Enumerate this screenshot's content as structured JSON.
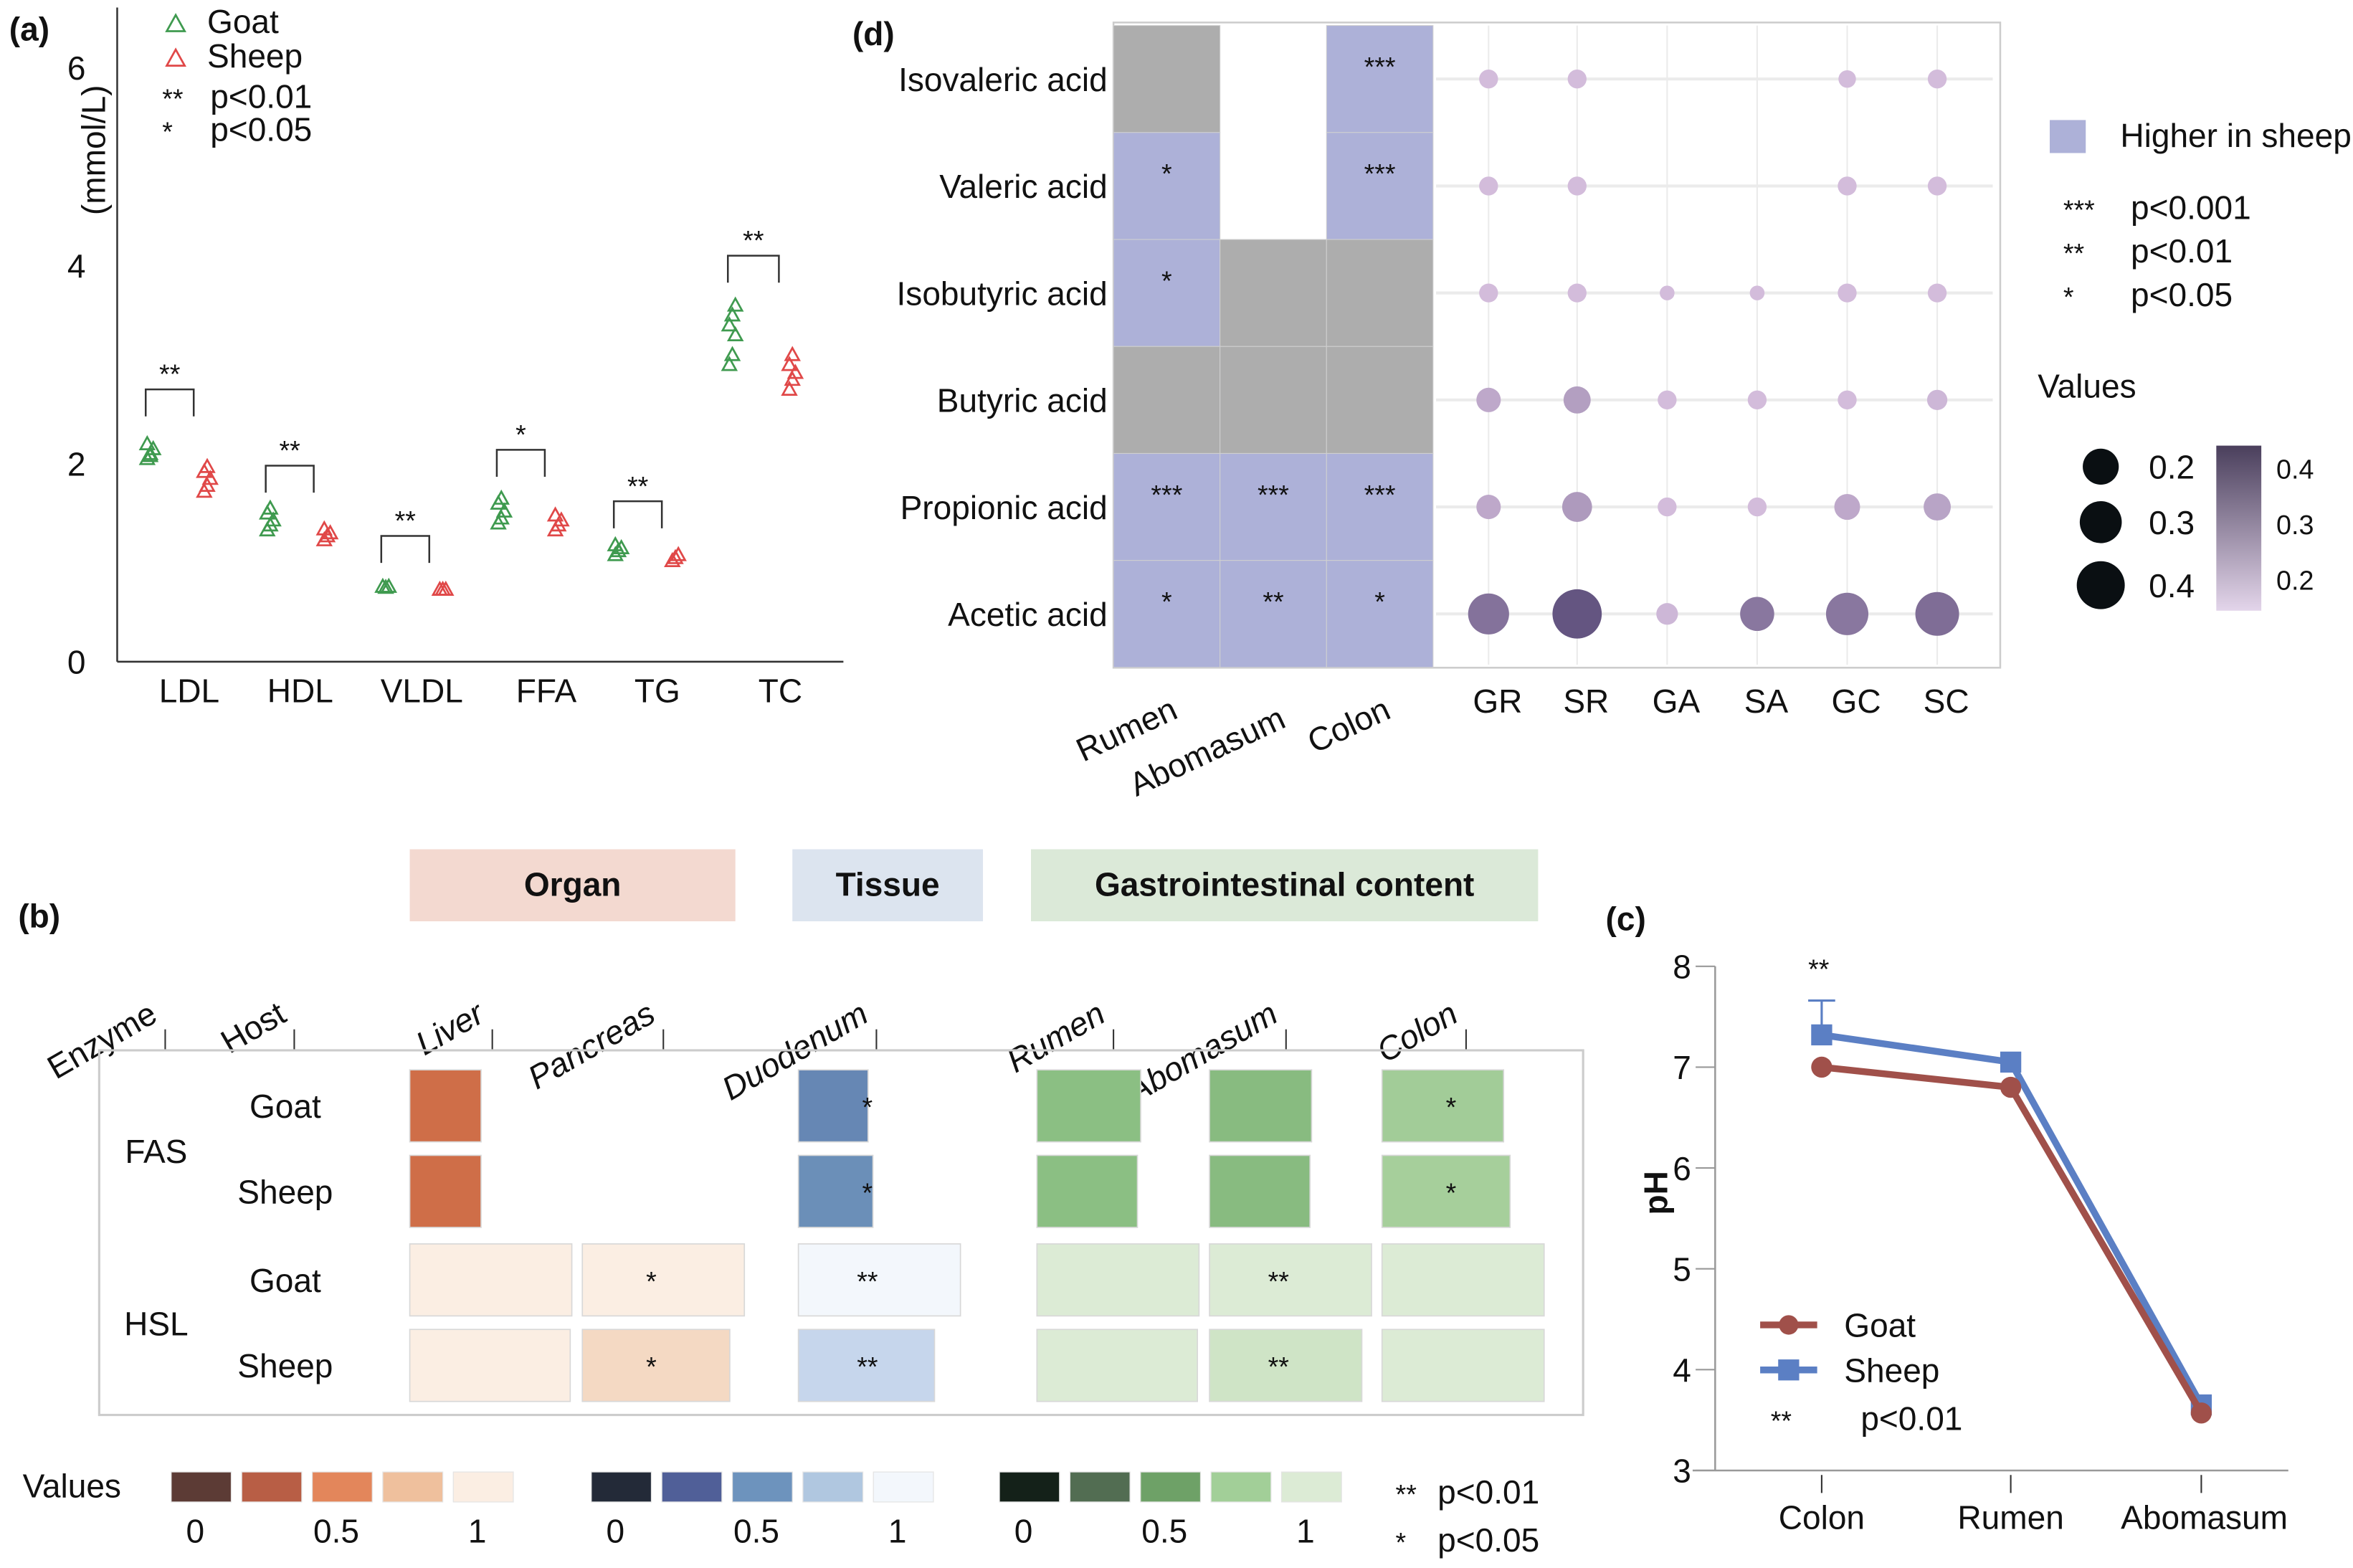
{
  "chart_data": [
    {
      "panel": "(a)",
      "type": "scatter",
      "ylabel": "(mmol/L)",
      "ylim": [
        0,
        6.6
      ],
      "yticks": [
        "0",
        "2",
        "4",
        "6"
      ],
      "categories": [
        "LDL",
        "HDL",
        "VLDL",
        "FFA",
        "TG",
        "TC"
      ],
      "legend": {
        "placement": "top-left",
        "series": [
          "Goat",
          "Sheep"
        ],
        "sig": [
          {
            "mark": "**",
            "text": "p<0.01"
          },
          {
            "mark": "*",
            "text": "p<0.05"
          }
        ]
      },
      "colors": {
        "Goat": "#3f9a4f",
        "Sheep": "#e04848"
      },
      "series": [
        {
          "name": "Goat",
          "values": [
            [
              2.05,
              2.1,
              2.15,
              2.2,
              2.08
            ],
            [
              1.33,
              1.38,
              1.43,
              1.5,
              1.55
            ],
            [
              0.76,
              0.75,
              0.76
            ],
            [
              1.4,
              1.45,
              1.52,
              1.6,
              1.65
            ],
            [
              1.08,
              1.12,
              1.15,
              1.18
            ],
            [
              3.0,
              3.1,
              3.3,
              3.4,
              3.5,
              3.6
            ]
          ]
        },
        {
          "name": "Sheep",
          "values": [
            [
              1.72,
              1.78,
              1.85,
              1.92,
              1.97
            ],
            [
              1.23,
              1.27,
              1.3,
              1.34
            ],
            [
              0.73,
              0.73,
              0.73
            ],
            [
              1.33,
              1.38,
              1.43,
              1.48
            ],
            [
              1.02,
              1.05,
              1.08
            ],
            [
              2.75,
              2.85,
              2.92,
              3.0,
              3.1
            ]
          ]
        }
      ],
      "significance": [
        {
          "category": "LDL",
          "mark": "**",
          "bracket_y": 2.75
        },
        {
          "category": "HDL",
          "mark": "**",
          "bracket_y": 1.98
        },
        {
          "category": "VLDL",
          "mark": "**",
          "bracket_y": 1.27
        },
        {
          "category": "FFA",
          "mark": "*",
          "bracket_y": 2.14
        },
        {
          "category": "TG",
          "mark": "**",
          "bracket_y": 1.62
        },
        {
          "category": "TC",
          "mark": "**",
          "bracket_y": 4.1
        }
      ]
    },
    {
      "panel": "(b)",
      "type": "heatmap",
      "groups": [
        {
          "label": "Organ",
          "color": "#f3d9d0",
          "text_color": "#d4704a"
        },
        {
          "label": "Tissue",
          "color": "#dce4ef",
          "text_color": "#6b8fc4"
        },
        {
          "label": "Gastrointestinal content",
          "color": "#dbe9d8",
          "text_color": "#6a9860"
        }
      ],
      "header_labels": [
        "Enzyme",
        "Host"
      ],
      "columns": [
        {
          "label": "Liver",
          "color": "#d4704a"
        },
        {
          "label": "Pancreas",
          "color": "#d4704a"
        },
        {
          "label": "Duodenum",
          "color": "#6b8fc4"
        },
        {
          "label": "Rumen",
          "color": "#6a9860"
        },
        {
          "label": "Abomasum",
          "color": "#6a9860"
        },
        {
          "label": "Colon",
          "color": "#6a9860"
        }
      ],
      "enzymes": [
        "FAS",
        "HSL"
      ],
      "rows": [
        {
          "enzyme": "FAS",
          "host": "Goat",
          "cells": [
            {
              "color": "#cf6e48",
              "size": 0.44,
              "sig": ""
            },
            null,
            {
              "color": "#6687b4",
              "size": 0.43,
              "sig": "*"
            },
            {
              "color": "#8bbf83",
              "size": 0.64,
              "sig": ""
            },
            {
              "color": "#88bb80",
              "size": 0.63,
              "sig": ""
            },
            {
              "color": "#a2cc98",
              "size": 0.75,
              "sig": "*"
            }
          ]
        },
        {
          "enzyme": "FAS",
          "host": "Sheep",
          "cells": [
            {
              "color": "#cf6e48",
              "size": 0.44,
              "sig": ""
            },
            null,
            {
              "color": "#6b8fb8",
              "size": 0.46,
              "sig": "*"
            },
            {
              "color": "#8bbf83",
              "size": 0.62,
              "sig": ""
            },
            {
              "color": "#88bb80",
              "size": 0.62,
              "sig": ""
            },
            {
              "color": "#a6cf9b",
              "size": 0.79,
              "sig": "*"
            }
          ]
        },
        {
          "enzyme": "HSL",
          "host": "Goat",
          "cells": [
            {
              "color": "#fbeee3",
              "size": 1.0,
              "sig": ""
            },
            {
              "color": "#fbeee3",
              "size": 1.0,
              "sig": "*"
            },
            {
              "color": "#f3f7fc",
              "size": 1.0,
              "sig": "**"
            },
            {
              "color": "#dcebd5",
              "size": 1.0,
              "sig": ""
            },
            {
              "color": "#dcebd5",
              "size": 1.0,
              "sig": "**"
            },
            {
              "color": "#dcebd5",
              "size": 1.0,
              "sig": ""
            }
          ]
        },
        {
          "enzyme": "HSL",
          "host": "Sheep",
          "cells": [
            {
              "color": "#fbeee3",
              "size": 0.99,
              "sig": ""
            },
            {
              "color": "#f4d9c3",
              "size": 0.91,
              "sig": "*"
            },
            {
              "color": "#c6d6ec",
              "size": 0.84,
              "sig": "**"
            },
            {
              "color": "#dcebd5",
              "size": 0.99,
              "sig": ""
            },
            {
              "color": "#cfe4c6",
              "size": 0.94,
              "sig": "**"
            },
            {
              "color": "#dcebd5",
              "size": 1.0,
              "sig": ""
            }
          ]
        }
      ],
      "legend": {
        "title": "Values",
        "scales": [
          {
            "colors": [
              "#5c3b35",
              "#b85e45",
              "#e3865b",
              "#efc09d",
              "#fbeee3"
            ],
            "ticks": [
              "0",
              "0.5",
              "1"
            ]
          },
          {
            "colors": [
              "#232a38",
              "#505f98",
              "#6d93bd",
              "#b0c7e0",
              "#f3f7fc"
            ],
            "ticks": [
              "0",
              "0.5",
              "1"
            ]
          },
          {
            "colors": [
              "#142119",
              "#526d52",
              "#6ea167",
              "#a2cf98",
              "#dcebd5"
            ],
            "ticks": [
              "0",
              "0.5",
              "1"
            ]
          }
        ],
        "sig": [
          {
            "mark": "**",
            "text": "p<0.01"
          },
          {
            "mark": "*",
            "text": "p<0.05"
          }
        ]
      }
    },
    {
      "panel": "(c)",
      "type": "line",
      "ylabel": "pH",
      "ylim": [
        3,
        8
      ],
      "yticks": [
        "3",
        "4",
        "5",
        "6",
        "7",
        "8"
      ],
      "categories": [
        "Colon",
        "Rumen",
        "Abomasum"
      ],
      "series": [
        {
          "name": "Goat",
          "values": [
            7.0,
            6.8,
            3.57
          ],
          "color": "#a0504a",
          "marker": "circle"
        },
        {
          "name": "Sheep",
          "values": [
            7.32,
            7.05,
            3.65
          ],
          "color": "#5b7fc4",
          "marker": "square",
          "error_upper": [
            7.66,
            null,
            null
          ]
        }
      ],
      "annotations": [
        {
          "category": "Colon",
          "text": "**",
          "color": "#5b7fc4"
        }
      ],
      "legend": {
        "placement": "bottom-left",
        "sig": {
          "mark": "**",
          "text": "p<0.01"
        }
      }
    },
    {
      "panel": "(d)",
      "type": "heatmap",
      "rows": [
        "Isovaleric acid",
        "Valeric acid",
        "Isobutyric acid",
        "Butyric acid",
        "Propionic acid",
        "Acetic acid"
      ],
      "tile_columns": [
        "Rumen",
        "Abomasum",
        "Colon"
      ],
      "tile_colors": {
        "higher_in_sheep": "#adb1d8",
        "ns": "#adadad"
      },
      "tiles": [
        [
          {
            "state": "ns",
            "sig": ""
          },
          null,
          {
            "state": "higher_in_sheep",
            "sig": "***"
          }
        ],
        [
          {
            "state": "higher_in_sheep",
            "sig": "*"
          },
          null,
          {
            "state": "higher_in_sheep",
            "sig": "***"
          }
        ],
        [
          {
            "state": "higher_in_sheep",
            "sig": "*"
          },
          {
            "state": "ns",
            "sig": ""
          },
          {
            "state": "ns",
            "sig": ""
          }
        ],
        [
          {
            "state": "ns",
            "sig": ""
          },
          {
            "state": "ns",
            "sig": ""
          },
          {
            "state": "ns",
            "sig": ""
          }
        ],
        [
          {
            "state": "higher_in_sheep",
            "sig": "***"
          },
          {
            "state": "higher_in_sheep",
            "sig": "***"
          },
          {
            "state": "higher_in_sheep",
            "sig": "***"
          }
        ],
        [
          {
            "state": "higher_in_sheep",
            "sig": "*"
          },
          {
            "state": "higher_in_sheep",
            "sig": "**"
          },
          {
            "state": "higher_in_sheep",
            "sig": "*"
          }
        ]
      ],
      "dot_columns": [
        "GR",
        "SR",
        "GA",
        "SA",
        "GC",
        "SC"
      ],
      "dots": [
        [
          0.2,
          0.2,
          null,
          null,
          0.19,
          0.2
        ],
        [
          0.2,
          0.2,
          null,
          null,
          0.2,
          0.2
        ],
        [
          0.2,
          0.2,
          0.17,
          0.17,
          0.2,
          0.2
        ],
        [
          0.24,
          0.26,
          0.2,
          0.2,
          0.2,
          0.21
        ],
        [
          0.24,
          0.28,
          0.2,
          0.2,
          0.25,
          0.26
        ],
        [
          0.36,
          0.42,
          0.22,
          0.31,
          0.37,
          0.38
        ]
      ],
      "dot_colors": [
        [
          0.2,
          0.2,
          null,
          null,
          0.2,
          0.2
        ],
        [
          0.2,
          0.2,
          null,
          null,
          0.2,
          0.2
        ],
        [
          0.2,
          0.2,
          0.2,
          0.2,
          0.2,
          0.2
        ],
        [
          0.24,
          0.26,
          0.2,
          0.2,
          0.2,
          0.21
        ],
        [
          0.24,
          0.27,
          0.2,
          0.2,
          0.24,
          0.25
        ],
        [
          0.35,
          0.41,
          0.21,
          0.34,
          0.34,
          0.36
        ]
      ],
      "legend": {
        "tile_label": "Higher in sheep",
        "sig": [
          {
            "mark": "***",
            "text": "p<0.001"
          },
          {
            "mark": "**",
            "text": "p<0.01"
          },
          {
            "mark": "*",
            "text": "p<0.05"
          }
        ],
        "values_title": "Values",
        "size_ticks": [
          "0.2",
          "0.3",
          "0.4"
        ],
        "color_ticks": [
          "0.4",
          "0.3",
          "0.2"
        ],
        "color_range": [
          "#e3d5ea",
          "#4a3f5c"
        ]
      }
    }
  ]
}
